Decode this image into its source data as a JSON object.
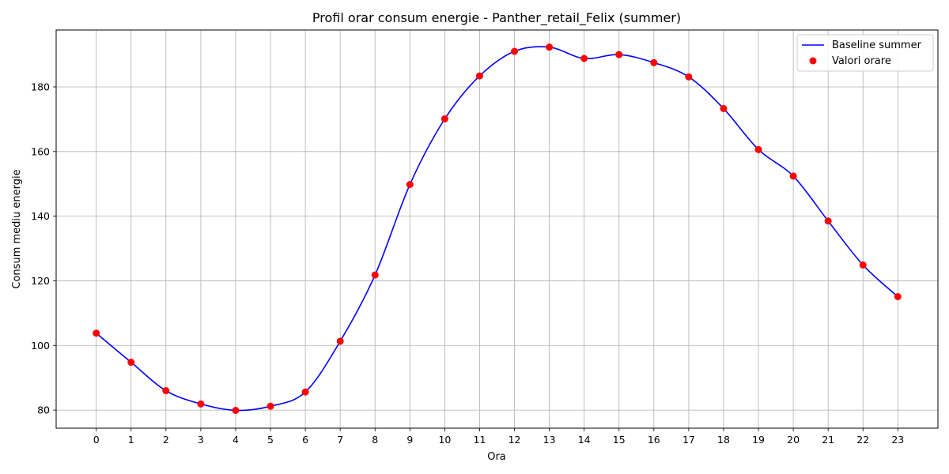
{
  "chart_data": {
    "type": "line",
    "title": "Profil orar consum energie - Panther_retail_Felix (summer)",
    "xlabel": "Ora",
    "ylabel": "Consum mediu energie",
    "x": [
      0,
      1,
      2,
      3,
      4,
      5,
      6,
      7,
      8,
      9,
      10,
      11,
      12,
      13,
      14,
      15,
      16,
      17,
      18,
      19,
      20,
      21,
      22,
      23
    ],
    "xticks": [
      "0",
      "1",
      "2",
      "3",
      "4",
      "5",
      "6",
      "7",
      "8",
      "9",
      "10",
      "11",
      "12",
      "13",
      "14",
      "15",
      "16",
      "17",
      "18",
      "19",
      "20",
      "21",
      "22",
      "23"
    ],
    "yticks": [
      "80",
      "100",
      "120",
      "140",
      "160",
      "180"
    ],
    "ytick_values": [
      80,
      100,
      120,
      140,
      160,
      180
    ],
    "xlim": [
      -1.15,
      24.15
    ],
    "ylim": [
      74.4,
      197.6
    ],
    "grid": true,
    "legend_position": "top-right",
    "series": [
      {
        "name": "Baseline summer",
        "kind": "smooth-line",
        "color": "#0000ff",
        "values": [
          103.8,
          94.8,
          86.0,
          81.9,
          79.9,
          81.2,
          85.6,
          101.3,
          121.8,
          149.8,
          170.1,
          183.4,
          191.0,
          192.3,
          188.8,
          190.0,
          187.5,
          183.1,
          173.3,
          160.6,
          152.4,
          138.5,
          124.9,
          115.1
        ]
      },
      {
        "name": "Valori orare",
        "kind": "scatter",
        "color": "#ff0000",
        "values": [
          103.8,
          94.8,
          86.0,
          81.9,
          79.9,
          81.2,
          85.6,
          101.3,
          121.8,
          149.8,
          170.1,
          183.4,
          191.0,
          192.3,
          188.8,
          190.0,
          187.5,
          183.1,
          173.3,
          160.6,
          152.4,
          138.5,
          124.9,
          115.1
        ]
      }
    ]
  }
}
